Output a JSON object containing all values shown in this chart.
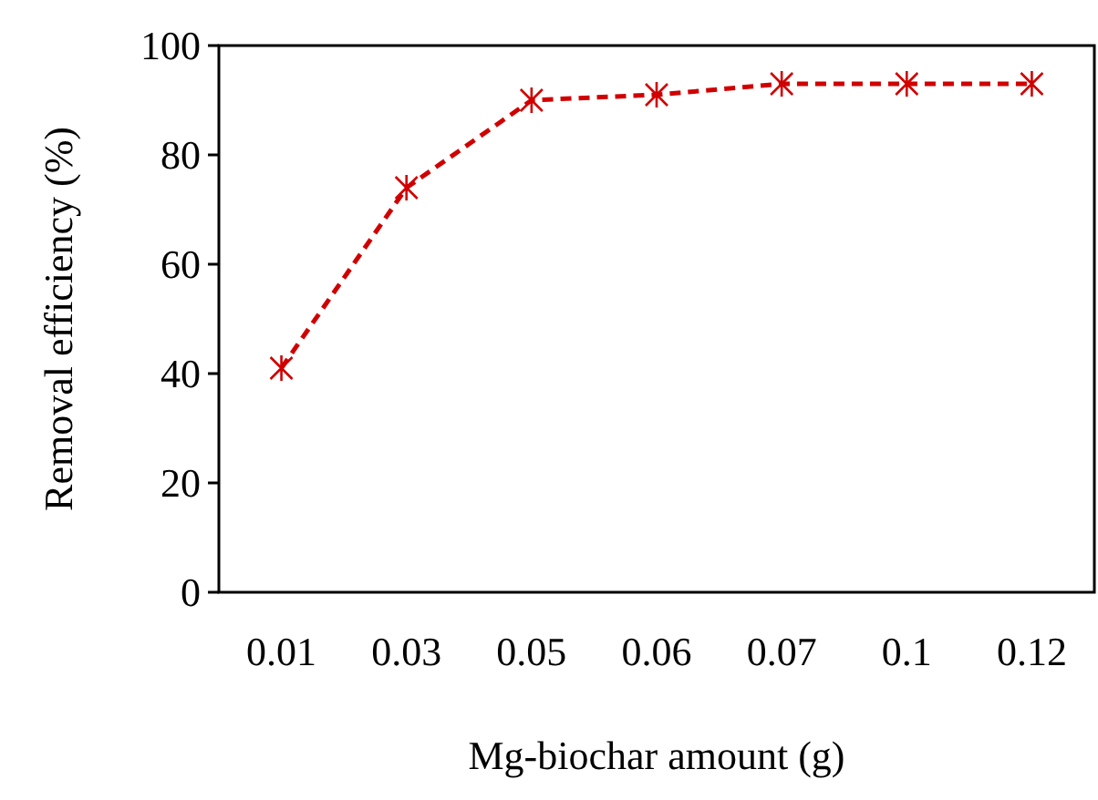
{
  "chart_data": {
    "type": "line",
    "xlabel": "Mg-biochar amount (g)",
    "ylabel": "Removal efficiency (%)",
    "categories": [
      "0.01",
      "0.03",
      "0.05",
      "0.06",
      "0.07",
      "0.1",
      "0.12"
    ],
    "series": [
      {
        "color": "#d00000",
        "values": [
          41,
          74,
          90,
          91,
          93,
          93,
          93
        ]
      }
    ],
    "ylim": [
      0,
      100
    ],
    "yticks": [
      0,
      20,
      40,
      60,
      80,
      100
    ],
    "grid": false,
    "marker": "cross",
    "line_style": "dashed"
  }
}
